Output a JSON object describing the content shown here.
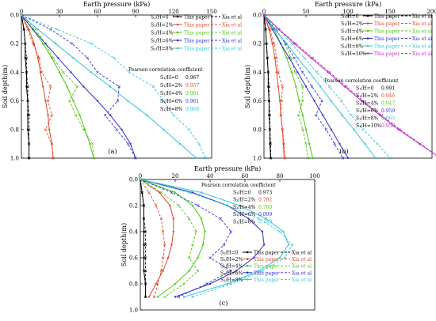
{
  "chart_data": [
    {
      "type": "line",
      "panel_label": "(a)",
      "xlabel": "Earth pressure (kPa)",
      "ylabel": "Soil depth(m)",
      "xlim": [
        0,
        150
      ],
      "ylim": [
        0,
        1.0
      ],
      "x_ticks": [
        "0",
        "30",
        "60",
        "90",
        "120",
        "150"
      ],
      "y_ticks": [
        "0.0",
        "0.2",
        "0.4",
        "0.6",
        "0.8",
        "1.0"
      ],
      "legend_position": "top-right",
      "depth": [
        0,
        0.1,
        0.2,
        0.3,
        0.4,
        0.5,
        0.6,
        0.7,
        0.8,
        0.9,
        1.0
      ],
      "corr_title": "Pearson correlation coefficient",
      "corr": [
        {
          "label": "S₁/H=0",
          "value": "0.967"
        },
        {
          "label": "S₁/H=2%",
          "value": "0.957"
        },
        {
          "label": "S₁/H=4%",
          "value": "0.961"
        },
        {
          "label": "S₁/H=6%",
          "value": "0.961"
        },
        {
          "label": "S₁/H=8%",
          "value": "0.968"
        }
      ],
      "series": [
        {
          "name": "S₁/H=0",
          "color": "#000000",
          "paper": [
            0,
            2,
            3,
            3,
            4,
            4,
            5,
            5,
            5,
            6,
            6
          ],
          "xia": [
            0,
            2,
            3,
            4,
            4,
            5,
            5,
            6,
            6,
            6,
            6
          ]
        },
        {
          "name": "S₁/H=2%",
          "color": "#e2472a",
          "paper": [
            0,
            6,
            10,
            13,
            15,
            17,
            19,
            21,
            22,
            24,
            25
          ],
          "xia": [
            0,
            5,
            9,
            14,
            16,
            23,
            21,
            24,
            19,
            24,
            25
          ]
        },
        {
          "name": "S₁/H=4%",
          "color": "#4dc70f",
          "paper": [
            0,
            9,
            17,
            24,
            30,
            36,
            41,
            46,
            50,
            54,
            57
          ],
          "xia": [
            0,
            11,
            19,
            25,
            33,
            44,
            38,
            43,
            49,
            56,
            57
          ]
        },
        {
          "name": "S₁/H=6%",
          "color": "#2e2ed8",
          "paper": [
            0,
            9,
            19,
            29,
            39,
            49,
            60,
            70,
            79,
            86,
            90
          ],
          "xia": [
            0,
            23,
            40,
            52,
            60,
            77,
            76,
            66,
            75,
            84,
            90
          ]
        },
        {
          "name": "S₁/H=8%",
          "color": "#2ec6dc",
          "paper": [
            0,
            13,
            27,
            41,
            55,
            70,
            84,
            99,
            112,
            125,
            138
          ],
          "xia": [
            0,
            28,
            55,
            73,
            85,
            104,
            112,
            120,
            132,
            140,
            145
          ]
        }
      ]
    },
    {
      "type": "line",
      "panel_label": "(b)",
      "xlabel": "Earth pressure (kPa)",
      "ylabel": "Soil depth(m)",
      "xlim": [
        0,
        200
      ],
      "ylim": [
        0,
        1.0
      ],
      "x_ticks": [
        "0",
        "50",
        "100",
        "150",
        "200"
      ],
      "y_ticks": [
        "0.0",
        "0.2",
        "0.4",
        "0.6",
        "0.8",
        "1.0"
      ],
      "legend_position": "top-right",
      "depth": [
        0,
        0.1,
        0.2,
        0.3,
        0.4,
        0.5,
        0.6,
        0.7,
        0.8,
        0.9,
        1.0
      ],
      "corr_title": "Pearson correlation coefficient",
      "corr": [
        {
          "label": "S₁/H=0",
          "value": "0.991"
        },
        {
          "label": "S₁/H=2%",
          "value": "0.946"
        },
        {
          "label": "S₁/H=4%",
          "value": "0.947"
        },
        {
          "label": "S₁/H=6%",
          "value": "0.959"
        },
        {
          "label": "S₁/H=8%",
          "value": "0.965"
        },
        {
          "label": "S₁/H=10%",
          "value": "0.956"
        }
      ],
      "series": [
        {
          "name": "S₁/H=0",
          "color": "#000000",
          "paper": [
            0,
            2,
            3,
            4,
            5,
            5,
            6,
            6,
            7,
            7,
            8
          ],
          "xia": [
            0,
            2,
            3,
            4,
            5,
            6,
            6,
            7,
            7,
            8,
            8
          ]
        },
        {
          "name": "S₁/H=2%",
          "color": "#e2472a",
          "paper": [
            0,
            6,
            10,
            13,
            15,
            17,
            19,
            20,
            22,
            23,
            24
          ],
          "xia": [
            0,
            7,
            12,
            15,
            17,
            22,
            21,
            20,
            22,
            24,
            25
          ]
        },
        {
          "name": "S₁/H=4%",
          "color": "#4dc70f",
          "paper": [
            0,
            12,
            20,
            27,
            33,
            38,
            42,
            46,
            50,
            54,
            58
          ],
          "xia": [
            0,
            14,
            25,
            32,
            37,
            46,
            46,
            41,
            46,
            50,
            52
          ]
        },
        {
          "name": "S₁/H=6%",
          "color": "#2e2ed8",
          "paper": [
            0,
            10,
            20,
            30,
            40,
            50,
            60,
            70,
            80,
            90,
            100
          ],
          "xia": [
            0,
            14,
            26,
            36,
            46,
            57,
            69,
            62,
            74,
            84,
            94
          ]
        },
        {
          "name": "S₁/H=8%",
          "color": "#2ec6dc",
          "paper": [
            0,
            13,
            27,
            40,
            54,
            67,
            80,
            93,
            107,
            120,
            133
          ],
          "xia": [
            0,
            17,
            33,
            48,
            63,
            78,
            92,
            104,
            118,
            135,
            150
          ]
        },
        {
          "name": "S₁/H=10%",
          "color": "#c030c8",
          "paper": [
            0,
            18,
            36,
            56,
            76,
            96,
            116,
            138,
            160,
            185,
            210
          ],
          "xia": [
            0,
            18,
            38,
            58,
            78,
            98,
            118,
            140,
            162,
            186,
            210
          ]
        }
      ]
    },
    {
      "type": "line",
      "panel_label": "(c)",
      "xlabel": "Earth pressure (kPa)",
      "ylabel": "Soil depth(m)",
      "xlim": [
        0,
        100
      ],
      "ylim": [
        0,
        1.0
      ],
      "x_ticks": [
        "0",
        "20",
        "40",
        "60",
        "80",
        "100"
      ],
      "y_ticks": [
        "0.0",
        "0.2",
        "0.4",
        "0.6",
        "0.8",
        "1.0"
      ],
      "legend_position": "bottom-right",
      "depth": [
        0,
        0.1,
        0.2,
        0.3,
        0.4,
        0.5,
        0.6,
        0.7,
        0.8,
        0.9
      ],
      "corr_title": "Pearson correlation coefficient",
      "corr": [
        {
          "label": "S₁/H=0",
          "value": "0.973"
        },
        {
          "label": "S₁/H=2%",
          "value": "0.792"
        },
        {
          "label": "S₁/H=4%",
          "value": "0.760"
        },
        {
          "label": "S₁/H=6%",
          "value": "0.809"
        },
        {
          "label": "S₁/H=8%",
          "value": "0.789"
        }
      ],
      "series": [
        {
          "name": "S₁/H=0",
          "color": "#000000",
          "paper": [
            0,
            1,
            2,
            2,
            2,
            2,
            2,
            2,
            3,
            3
          ],
          "xia": [
            0,
            1,
            2,
            2,
            3,
            3,
            3,
            3,
            3,
            3
          ]
        },
        {
          "name": "S₁/H=2%",
          "color": "#e2472a",
          "paper": [
            0,
            11,
            17,
            19,
            19,
            18,
            16,
            13,
            9,
            5
          ],
          "xia": [
            0,
            5,
            9,
            12,
            13,
            14,
            13,
            12,
            10,
            8
          ]
        },
        {
          "name": "S₁/H=4%",
          "color": "#4dc70f",
          "paper": [
            0,
            20,
            30,
            35,
            37,
            36,
            33,
            28,
            20,
            10
          ],
          "xia": [
            0,
            12,
            22,
            28,
            32,
            30,
            28,
            33,
            25,
            14
          ]
        },
        {
          "name": "S₁/H=6%",
          "color": "#2e2ed8",
          "paper": [
            0,
            30,
            50,
            62,
            70,
            71,
            65,
            55,
            40,
            20
          ],
          "xia": [
            0,
            18,
            33,
            46,
            52,
            48,
            40,
            52,
            38,
            22
          ]
        },
        {
          "name": "S₁/H=8%",
          "color": "#2ec6dc",
          "paper": [
            0,
            35,
            57,
            72,
            82,
            85,
            80,
            68,
            50,
            25
          ],
          "xia": [
            0,
            28,
            50,
            68,
            80,
            87,
            83,
            70,
            52,
            30
          ]
        }
      ]
    }
  ],
  "legend_paper_label": "This paper",
  "legend_xia_label": "Xia et al"
}
